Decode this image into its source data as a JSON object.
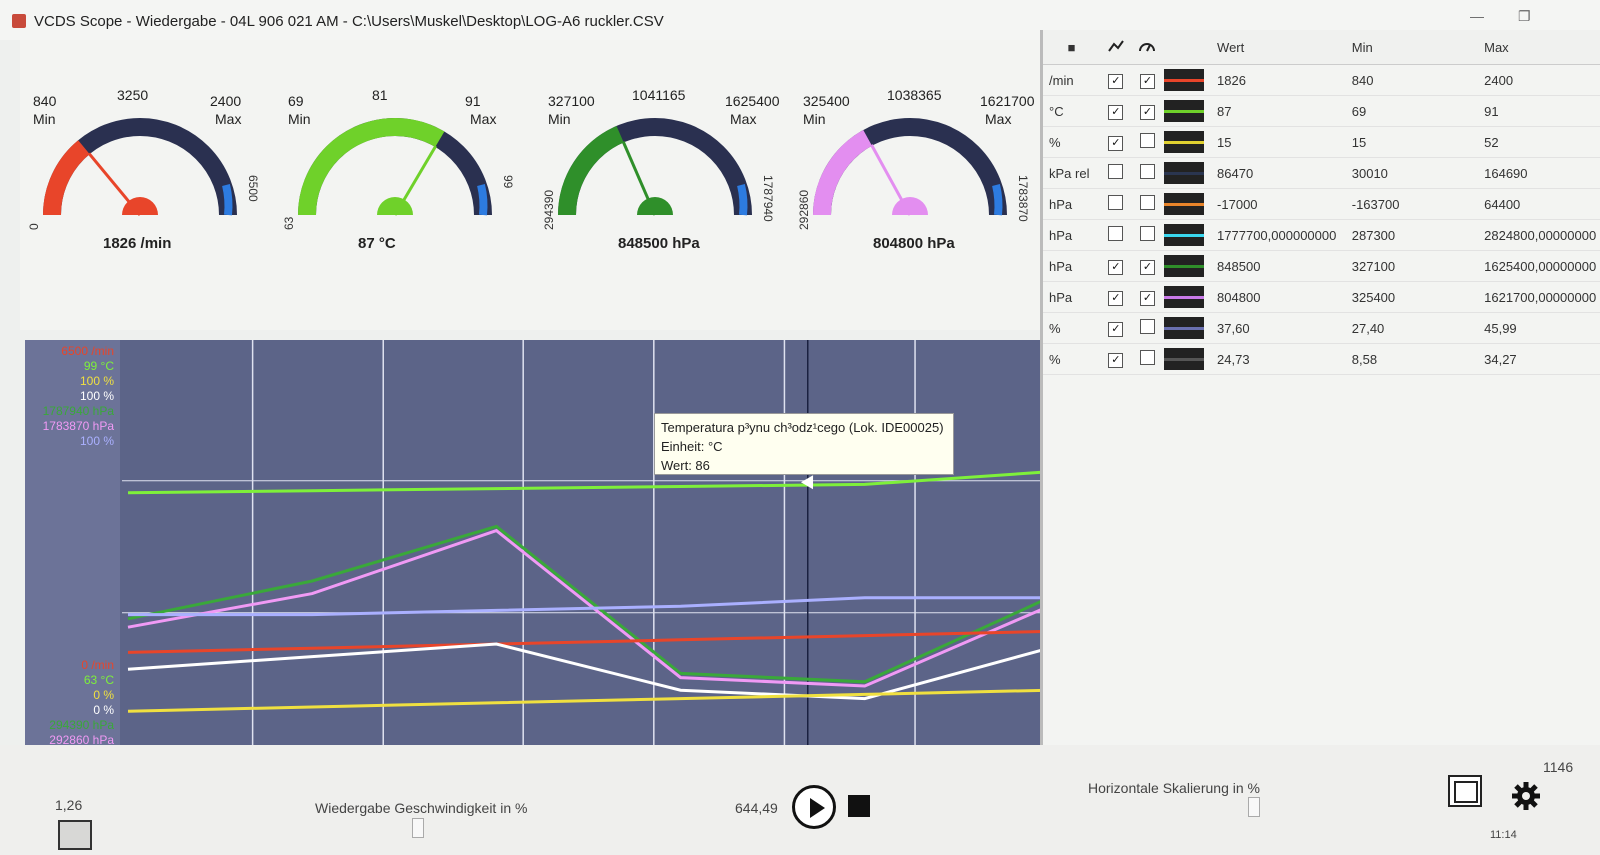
{
  "window": {
    "title": "VCDS Scope - Wiedergabe - 04L 906 021 AM - C:\\Users\\Muskel\\Desktop\\LOG-A6 ruckler.CSV",
    "icon": "scope-app-icon",
    "minimize": "—",
    "restore": "❐"
  },
  "gauges": [
    {
      "min": "840",
      "min_label": "Min",
      "max": "2400",
      "max_label": "Max",
      "peak": "3250",
      "range_low": "0",
      "range_high": "6500",
      "value": "1826  /min",
      "color": "#e8452a",
      "fill_fraction": 0.28
    },
    {
      "min": "69",
      "min_label": "Min",
      "max": "91",
      "max_label": "Max",
      "peak": "81",
      "range_low": "63",
      "range_high": "99",
      "value": "87  °C",
      "color": "#6fd12a",
      "fill_fraction": 0.67
    },
    {
      "min": "327100",
      "min_label": "Min",
      "max": "1625400",
      "max_label": "Max",
      "peak": "1041165",
      "range_low": "294390",
      "range_high": "1787940",
      "value": "848500  hPa",
      "color": "#2f8f2a",
      "fill_fraction": 0.37
    },
    {
      "min": "325400",
      "min_label": "Min",
      "max": "1621700",
      "max_label": "Max",
      "peak": "1038365",
      "range_low": "292860",
      "range_high": "1783870",
      "value": "804800  hPa",
      "color": "#e38ef0",
      "fill_fraction": 0.34
    }
  ],
  "chart_data": {
    "type": "line",
    "tooltip": {
      "line1": "Temperatura p³ynu ch³odz¹cego (Lok. IDE00025)",
      "line2": "Einheit:  °C",
      "line3": "Wert: 86"
    },
    "axis_labels_top": [
      {
        "text": "6500 /min",
        "color": "#e8452a"
      },
      {
        "text": "99 °C",
        "color": "#7ef03a"
      },
      {
        "text": "100 %",
        "color": "#f0e040"
      },
      {
        "text": "100 %",
        "color": "#ffffff"
      },
      {
        "text": "1787940 hPa",
        "color": "#3aa83a"
      },
      {
        "text": "1783870 hPa",
        "color": "#f09af5"
      },
      {
        "text": "100 %",
        "color": "#aab0ff"
      }
    ],
    "axis_labels_bottom": [
      {
        "text": "0 /min",
        "color": "#e8452a"
      },
      {
        "text": "63 °C",
        "color": "#7ef03a"
      },
      {
        "text": "0 %",
        "color": "#f0e040"
      },
      {
        "text": "0 %",
        "color": "#ffffff"
      },
      {
        "text": "294390 hPa",
        "color": "#3aa83a"
      },
      {
        "text": "292860 hPa",
        "color": "#f09af5"
      },
      {
        "text": "0 %",
        "color": "#aab0ff"
      }
    ],
    "x": [
      0,
      1,
      2,
      3,
      4,
      5
    ],
    "ylim": [
      0,
      100
    ],
    "series": [
      {
        "color": "#7ef03a",
        "values": [
          66,
          66.5,
          67,
          67.5,
          68,
          71
        ]
      },
      {
        "color": "#3aa83a",
        "values": [
          36,
          45,
          58,
          23,
          21,
          41
        ]
      },
      {
        "color": "#f09af5",
        "values": [
          34,
          42,
          57,
          22,
          20,
          39
        ]
      },
      {
        "color": "#aab0ff",
        "values": [
          37,
          37,
          38,
          39,
          41,
          41
        ]
      },
      {
        "color": "#e8452a",
        "values": [
          28,
          29,
          30,
          31,
          32,
          33
        ]
      },
      {
        "color": "#ffffff",
        "values": [
          24,
          27,
          30,
          19,
          17,
          29
        ]
      },
      {
        "color": "#f0e040",
        "values": [
          14,
          15,
          16,
          17,
          18,
          19
        ]
      }
    ]
  },
  "table": {
    "headers": {
      "all": "■",
      "col_graph": "graph-icon",
      "col_gauge": "gauge-icon",
      "wert": "Wert",
      "min": "Min",
      "max": "Max"
    },
    "rows": [
      {
        "unit": "/min",
        "graph": true,
        "gauge": true,
        "color": "#e8452a",
        "wert": "1826",
        "min": "840",
        "max": "2400"
      },
      {
        "unit": "°C",
        "graph": true,
        "gauge": true,
        "color": "#6fd12a",
        "wert": "87",
        "min": "69",
        "max": "91"
      },
      {
        "unit": "%",
        "graph": true,
        "gauge": false,
        "color": "#e0d030",
        "wert": "15",
        "min": "15",
        "max": "52"
      },
      {
        "unit": "kPa rel",
        "graph": false,
        "gauge": false,
        "color": "#2a3550",
        "wert": "86470",
        "min": "30010",
        "max": "164690"
      },
      {
        "unit": "hPa",
        "graph": false,
        "gauge": false,
        "color": "#e8842a",
        "wert": "-17000",
        "min": "-163700",
        "max": "64400"
      },
      {
        "unit": "hPa",
        "graph": false,
        "gauge": false,
        "color": "#3ad8f0",
        "wert": "1777700,000000000",
        "min": "287300",
        "max": "2824800,00000000"
      },
      {
        "unit": "hPa",
        "graph": true,
        "gauge": true,
        "color": "#2f8f2a",
        "wert": "848500",
        "min": "327100",
        "max": "1625400,00000000"
      },
      {
        "unit": "hPa",
        "graph": true,
        "gauge": true,
        "color": "#c97ae8",
        "wert": "804800",
        "min": "325400",
        "max": "1621700,00000000"
      },
      {
        "unit": "%",
        "graph": true,
        "gauge": false,
        "color": "#6a70b0",
        "wert": "37,60",
        "min": "27,40",
        "max": "45,99"
      },
      {
        "unit": "%",
        "graph": true,
        "gauge": false,
        "color": "#555555",
        "wert": "24,73",
        "min": "8,58",
        "max": "34,27"
      }
    ]
  },
  "bottom": {
    "left_value": "1,26",
    "speed_label": "Wiedergabe Geschwindigkeit in %",
    "time_value": "644,49",
    "hscale_label": "Horizontale Skalierung in %",
    "right_value": "1146",
    "clock": "11:14"
  }
}
